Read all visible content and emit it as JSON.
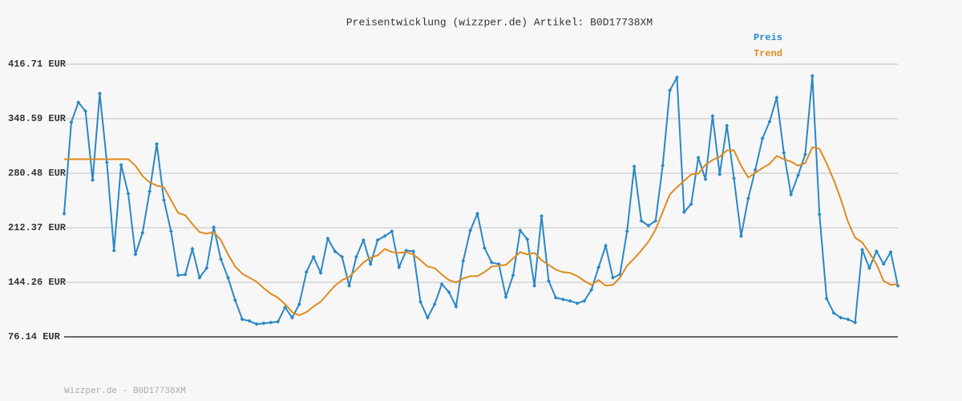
{
  "chart_data": {
    "type": "line",
    "title": "Preisentwicklung (wizzper.de) Artikel: B0D17738XM",
    "footer": "Wizzper.de - B0D17738XM",
    "ylim": [
      76.14,
      416.71
    ],
    "yticks": [
      {
        "value": 76.14,
        "label": "76.14 EUR"
      },
      {
        "value": 144.26,
        "label": "144.26 EUR"
      },
      {
        "value": 212.37,
        "label": "212.37 EUR"
      },
      {
        "value": 280.48,
        "label": "280.48 EUR"
      },
      {
        "value": 348.59,
        "label": "348.59 EUR"
      },
      {
        "value": 416.71,
        "label": "416.71 EUR"
      }
    ],
    "grid": true,
    "legend": "top-right",
    "series": [
      {
        "name": "Preis",
        "color": "#2a87c6",
        "markers": true,
        "values": [
          230,
          344,
          369,
          358,
          272,
          380,
          294,
          184,
          291,
          255,
          179,
          206,
          258,
          317,
          247,
          208,
          153,
          154,
          186,
          150,
          162,
          213,
          173,
          150,
          122,
          98,
          96,
          92,
          93,
          94,
          95,
          113,
          100,
          117,
          157,
          176,
          156,
          199,
          183,
          176,
          140,
          176,
          197,
          167,
          197,
          202,
          208,
          163,
          184,
          183,
          120,
          100,
          117,
          142,
          132,
          114,
          171,
          209,
          230,
          187,
          169,
          167,
          126,
          153,
          209,
          198,
          140,
          227,
          146,
          125,
          123,
          121,
          118,
          121,
          135,
          163,
          190,
          150,
          154,
          208,
          289,
          221,
          215,
          221,
          290,
          384,
          400,
          232,
          242,
          300,
          273,
          352,
          279,
          340,
          274,
          202,
          249,
          285,
          324,
          345,
          375,
          306,
          254,
          278,
          304,
          402,
          229,
          124,
          106,
          100,
          98,
          94,
          185,
          162,
          183,
          167,
          182,
          140
        ]
      },
      {
        "name": "Trend",
        "color": "#e08a1e",
        "markers": false,
        "values": [
          298,
          298,
          298,
          298,
          298,
          298,
          298,
          298,
          298,
          298,
          290,
          277,
          269,
          265,
          263,
          247,
          231,
          228,
          217,
          207,
          205,
          207,
          197,
          179,
          164,
          155,
          150,
          145,
          137,
          130,
          125,
          117,
          107,
          103,
          107,
          114,
          120,
          130,
          140,
          147,
          151,
          160,
          169,
          175,
          178,
          186,
          182,
          181,
          182,
          179,
          172,
          164,
          162,
          154,
          147,
          144,
          149,
          152,
          152,
          157,
          164,
          165,
          166,
          174,
          182,
          179,
          181,
          172,
          166,
          160,
          157,
          156,
          152,
          146,
          141,
          147,
          140,
          141,
          150,
          165,
          174,
          184,
          195,
          210,
          232,
          254,
          263,
          271,
          279,
          280,
          291,
          297,
          301,
          309,
          309,
          290,
          275,
          281,
          287,
          292,
          302,
          298,
          295,
          290,
          293,
          313,
          311,
          293,
          272,
          248,
          220,
          200,
          194,
          181,
          167,
          146,
          141,
          142
        ]
      }
    ]
  }
}
